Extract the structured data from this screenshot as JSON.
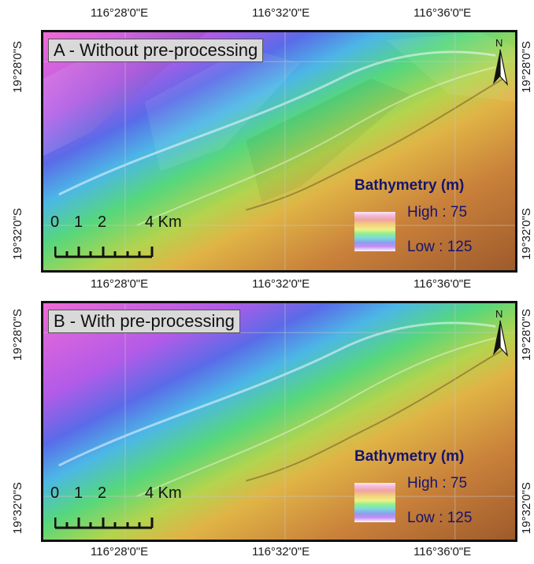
{
  "coords": {
    "top": [
      "116°28'0\"E",
      "116°32'0\"E",
      "116°36'0\"E"
    ],
    "middle": [
      "116°28'0\"E",
      "116°32'0\"E",
      "116°36'0\"E"
    ],
    "bottom": [
      "116°28'0\"E",
      "116°32'0\"E",
      "116°36'0\"E"
    ],
    "lat_a_top": "19°28'0\"S",
    "lat_a_bottom": "19°32'0\"S",
    "lat_b_top": "19°28'0\"S",
    "lat_b_bottom": "19°32'0\"S"
  },
  "panels": [
    {
      "title": "A - Without pre-processing",
      "north": "N",
      "legend_title": "Bathymetry (m)",
      "legend_high": "High : 75",
      "legend_low": "Low : 125",
      "scale_labels": [
        "0",
        "1",
        "2",
        "4 Km"
      ]
    },
    {
      "title": "B - With pre-processing",
      "north": "N",
      "legend_title": "Bathymetry (m)",
      "legend_high": "High : 75",
      "legend_low": "Low : 125",
      "scale_labels": [
        "0",
        "1",
        "2",
        "4 Km"
      ]
    }
  ],
  "colors": {
    "high": "#fbe6f4",
    "low": "#c98cf2",
    "deep": "#d63fc8",
    "mid": "#4fd96a",
    "shallow": "#b66b2f",
    "legend_text": "#15156e"
  }
}
